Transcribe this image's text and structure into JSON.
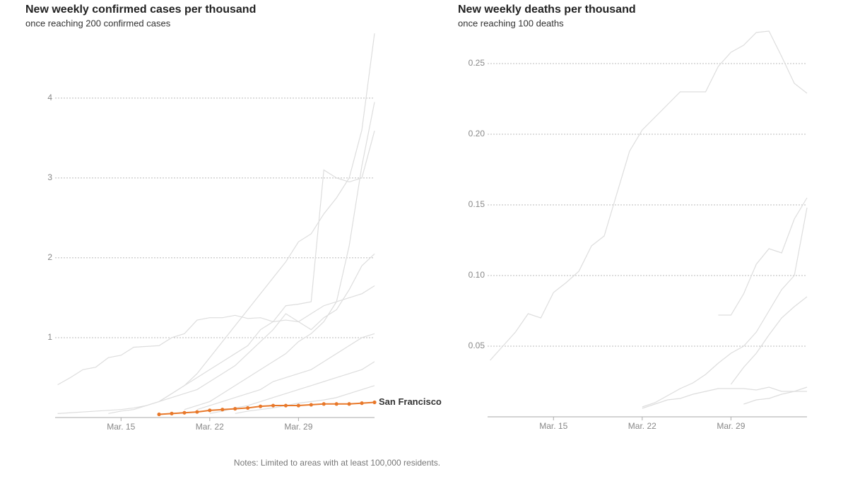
{
  "chart_data": [
    {
      "type": "line",
      "title": "New weekly confirmed cases per thousand",
      "subtitle": "once reaching 200 confirmed cases",
      "x": [
        10,
        11,
        12,
        13,
        14,
        15,
        16,
        17,
        18,
        19,
        20,
        21,
        22,
        23,
        24,
        25,
        26,
        27,
        28,
        29,
        30,
        31,
        32,
        33,
        34,
        35
      ],
      "xlim": [
        9.8,
        35
      ],
      "xticks": [
        {
          "value": 15,
          "label": "Mar. 15"
        },
        {
          "value": 22,
          "label": "Mar. 22"
        },
        {
          "value": 29,
          "label": "Mar. 29"
        }
      ],
      "ylim": [
        0,
        4.83
      ],
      "yticks": [
        1,
        2,
        3,
        4
      ],
      "grid": true,
      "series": [
        {
          "color": "#dddddd",
          "values": [
            0.41,
            0.5,
            0.6,
            0.63,
            0.75,
            0.78,
            0.88,
            0.89,
            0.9,
            1.0,
            1.05,
            1.22,
            1.25,
            1.25,
            1.28,
            1.24,
            1.25,
            1.2,
            1.22,
            1.2,
            1.3,
            1.4,
            1.45,
            1.5,
            1.55,
            1.65
          ]
        },
        {
          "color": "#dddddd",
          "values": [
            0.05,
            0.06,
            0.07,
            0.08,
            0.09,
            0.1,
            0.12,
            0.15,
            0.2,
            0.3,
            0.4,
            0.55,
            0.75,
            0.95,
            1.15,
            1.35,
            1.55,
            1.75,
            1.95,
            2.2,
            2.3,
            2.55,
            2.75,
            3.0,
            3.6,
            4.81
          ]
        },
        {
          "color": "#dddddd",
          "values": [
            null,
            null,
            null,
            null,
            null,
            null,
            null,
            null,
            0.2,
            0.3,
            0.4,
            0.5,
            0.6,
            0.7,
            0.8,
            0.9,
            1.1,
            1.2,
            1.4,
            1.42,
            1.45,
            3.1,
            3.0,
            2.95,
            3.0,
            3.59
          ]
        },
        {
          "color": "#dddddd",
          "values": [
            null,
            null,
            null,
            null,
            null,
            null,
            null,
            null,
            null,
            null,
            0.1,
            0.15,
            0.2,
            0.3,
            0.4,
            0.5,
            0.6,
            0.7,
            0.8,
            0.95,
            1.05,
            1.2,
            1.45,
            2.15,
            3.15,
            3.95
          ]
        },
        {
          "color": "#dddddd",
          "values": [
            null,
            null,
            null,
            null,
            0.05,
            0.08,
            0.1,
            0.15,
            0.2,
            0.25,
            0.3,
            0.35,
            0.45,
            0.55,
            0.65,
            0.8,
            0.95,
            1.1,
            1.3,
            1.2,
            1.1,
            1.25,
            1.35,
            1.6,
            1.9,
            2.05
          ]
        },
        {
          "color": "#dddddd",
          "values": [
            null,
            null,
            null,
            null,
            null,
            null,
            null,
            null,
            null,
            null,
            null,
            0.1,
            0.15,
            0.2,
            0.25,
            0.3,
            0.35,
            0.45,
            0.5,
            0.55,
            0.6,
            0.7,
            0.8,
            0.9,
            1.0,
            1.05
          ]
        },
        {
          "color": "#dddddd",
          "values": [
            null,
            null,
            null,
            null,
            null,
            null,
            null,
            null,
            null,
            null,
            null,
            null,
            0.05,
            0.08,
            0.12,
            0.15,
            0.2,
            0.25,
            0.3,
            0.35,
            0.4,
            0.45,
            0.5,
            0.55,
            0.6,
            0.7
          ]
        },
        {
          "color": "#dddddd",
          "values": [
            null,
            null,
            null,
            null,
            null,
            null,
            null,
            null,
            null,
            null,
            null,
            null,
            null,
            null,
            0.05,
            0.08,
            0.1,
            0.12,
            0.15,
            0.18,
            0.2,
            0.22,
            0.25,
            0.3,
            0.35,
            0.4
          ]
        },
        {
          "name": "San Francisco",
          "color": "#e8782a",
          "markers": true,
          "values": [
            null,
            null,
            null,
            null,
            null,
            null,
            null,
            null,
            0.04,
            0.05,
            0.06,
            0.07,
            0.09,
            0.1,
            0.11,
            0.12,
            0.14,
            0.15,
            0.15,
            0.15,
            0.16,
            0.17,
            0.17,
            0.17,
            0.18,
            0.19
          ]
        }
      ]
    },
    {
      "type": "line",
      "title": "New weekly deaths per thousand",
      "subtitle": "once reaching 100 deaths",
      "x": [
        10,
        11,
        12,
        13,
        14,
        15,
        16,
        17,
        18,
        19,
        20,
        21,
        22,
        23,
        24,
        25,
        26,
        27,
        28,
        29,
        30,
        31,
        32,
        33,
        34,
        35
      ],
      "xlim": [
        9.8,
        35
      ],
      "xticks": [
        {
          "value": 15,
          "label": "Mar. 15"
        },
        {
          "value": 22,
          "label": "Mar. 22"
        },
        {
          "value": 29,
          "label": "Mar. 29"
        }
      ],
      "ylim": [
        0,
        0.2725
      ],
      "yticks": [
        0.05,
        {
          "value": 0.1,
          "label": "0.10"
        },
        0.15,
        {
          "value": 0.2,
          "label": "0.20"
        },
        0.25
      ],
      "grid": true,
      "series": [
        {
          "color": "#dddddd",
          "values": [
            0.04,
            0.05,
            0.06,
            0.073,
            0.07,
            0.088,
            0.095,
            0.103,
            0.121,
            0.128,
            0.158,
            0.188,
            0.203,
            0.212,
            0.221,
            0.23,
            0.23,
            0.23,
            0.248,
            0.258,
            0.263,
            0.272,
            0.273,
            0.255,
            0.236,
            0.229
          ]
        },
        {
          "color": "#dddddd",
          "values": [
            null,
            null,
            null,
            null,
            null,
            null,
            null,
            null,
            null,
            null,
            null,
            null,
            null,
            null,
            null,
            null,
            null,
            null,
            0.072,
            0.072,
            0.087,
            0.108,
            0.119,
            0.116,
            0.14,
            0.155
          ]
        },
        {
          "color": "#dddddd",
          "values": [
            null,
            null,
            null,
            null,
            null,
            null,
            null,
            null,
            null,
            null,
            null,
            null,
            0.007,
            0.01,
            0.015,
            0.02,
            0.024,
            0.03,
            0.038,
            0.045,
            0.05,
            0.06,
            0.075,
            0.09,
            0.1,
            0.148
          ]
        },
        {
          "color": "#dddddd",
          "values": [
            null,
            null,
            null,
            null,
            null,
            null,
            null,
            null,
            null,
            null,
            null,
            null,
            null,
            null,
            null,
            null,
            null,
            null,
            null,
            0.023,
            0.035,
            0.045,
            0.058,
            0.07,
            0.078,
            0.085
          ]
        },
        {
          "color": "#dddddd",
          "values": [
            null,
            null,
            null,
            null,
            null,
            null,
            null,
            null,
            null,
            null,
            null,
            null,
            0.006,
            0.009,
            0.012,
            0.013,
            0.016,
            0.018,
            0.02,
            0.02,
            0.02,
            0.019,
            0.021,
            0.018,
            0.018,
            0.021
          ]
        },
        {
          "color": "#dddddd",
          "values": [
            null,
            null,
            null,
            null,
            null,
            null,
            null,
            null,
            null,
            null,
            null,
            null,
            null,
            null,
            null,
            null,
            null,
            null,
            null,
            null,
            0.009,
            0.012,
            0.013,
            0.016,
            0.018,
            0.018
          ]
        }
      ]
    }
  ],
  "notes": "Notes: Limited to areas with at least 100,000 residents."
}
